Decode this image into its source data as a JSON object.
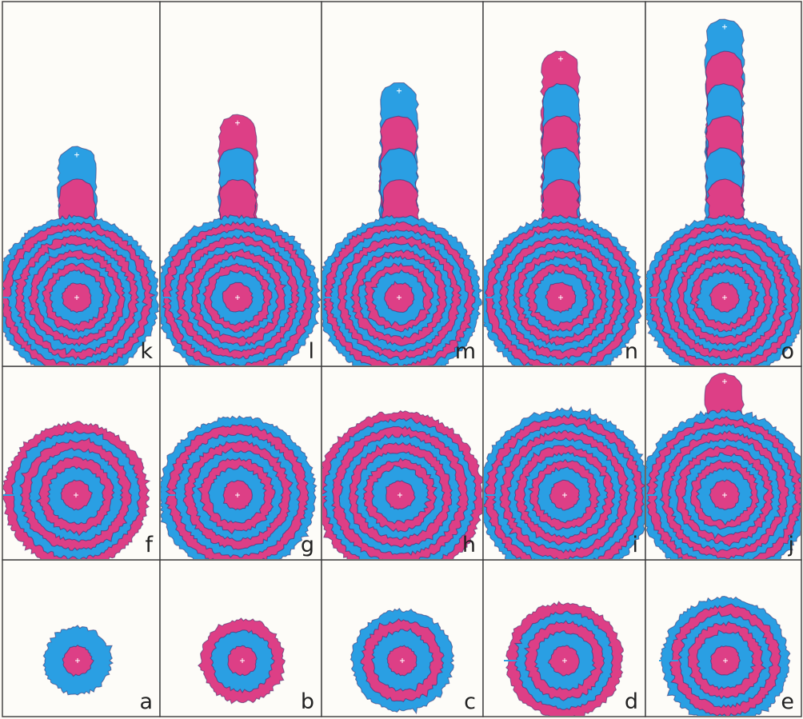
{
  "colors": {
    "blue": "#2a9fe3",
    "pink": "#dd3f86",
    "edge": "#3b2a6a",
    "frame": "#3a3a3a",
    "background": "#fdfcf8"
  },
  "panels": [
    {
      "label": "a",
      "rings": 2,
      "stem_bands": 0
    },
    {
      "label": "b",
      "rings": 3,
      "stem_bands": 0
    },
    {
      "label": "c",
      "rings": 4,
      "stem_bands": 0
    },
    {
      "label": "d",
      "rings": 5,
      "stem_bands": 0
    },
    {
      "label": "e",
      "rings": 6,
      "stem_bands": 0
    },
    {
      "label": "f",
      "rings": 7,
      "stem_bands": 0
    },
    {
      "label": "g",
      "rings": 8,
      "stem_bands": 0
    },
    {
      "label": "h",
      "rings": 9,
      "stem_bands": 0
    },
    {
      "label": "i",
      "rings": 10,
      "stem_bands": 0
    },
    {
      "label": "j",
      "rings": 10,
      "stem_bands": 1
    },
    {
      "label": "k",
      "rings": 10,
      "stem_bands": 2
    },
    {
      "label": "l",
      "rings": 10,
      "stem_bands": 3
    },
    {
      "label": "m",
      "rings": 10,
      "stem_bands": 4
    },
    {
      "label": "n",
      "rings": 10,
      "stem_bands": 5
    },
    {
      "label": "o",
      "rings": 10,
      "stem_bands": 6
    }
  ]
}
